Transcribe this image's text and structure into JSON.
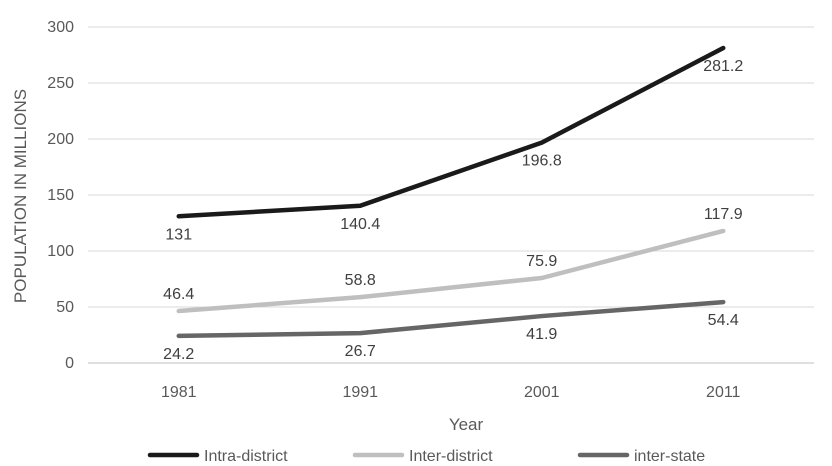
{
  "chart_data": {
    "type": "line",
    "title": "",
    "xlabel": "Year",
    "ylabel": "POPULATION IN MILLIONS",
    "categories": [
      "1981",
      "1991",
      "2001",
      "2011"
    ],
    "ylim": [
      0,
      300
    ],
    "yticks": [
      0,
      50,
      100,
      150,
      200,
      250,
      300
    ],
    "grid": true,
    "legend": "bottom",
    "series": [
      {
        "name": "Intra-district",
        "color": "#1a1a1a",
        "values": [
          131,
          140.4,
          196.8,
          281.2
        ],
        "labels": [
          "131",
          "140.4",
          "196.8",
          "281.2"
        ],
        "label_side": [
          "below",
          "below",
          "below",
          "below"
        ]
      },
      {
        "name": "Inter-district",
        "color": "#bfbfbf",
        "values": [
          46.4,
          58.8,
          75.9,
          117.9
        ],
        "labels": [
          "46.4",
          "58.8",
          "75.9",
          "117.9"
        ],
        "label_side": [
          "above",
          "above",
          "above",
          "above"
        ]
      },
      {
        "name": "inter-state",
        "color": "#666666",
        "values": [
          24.2,
          26.7,
          41.9,
          54.4
        ],
        "labels": [
          "24.2",
          "26.7",
          "41.9",
          "54.4"
        ],
        "label_side": [
          "below",
          "below",
          "below",
          "below"
        ]
      }
    ]
  }
}
